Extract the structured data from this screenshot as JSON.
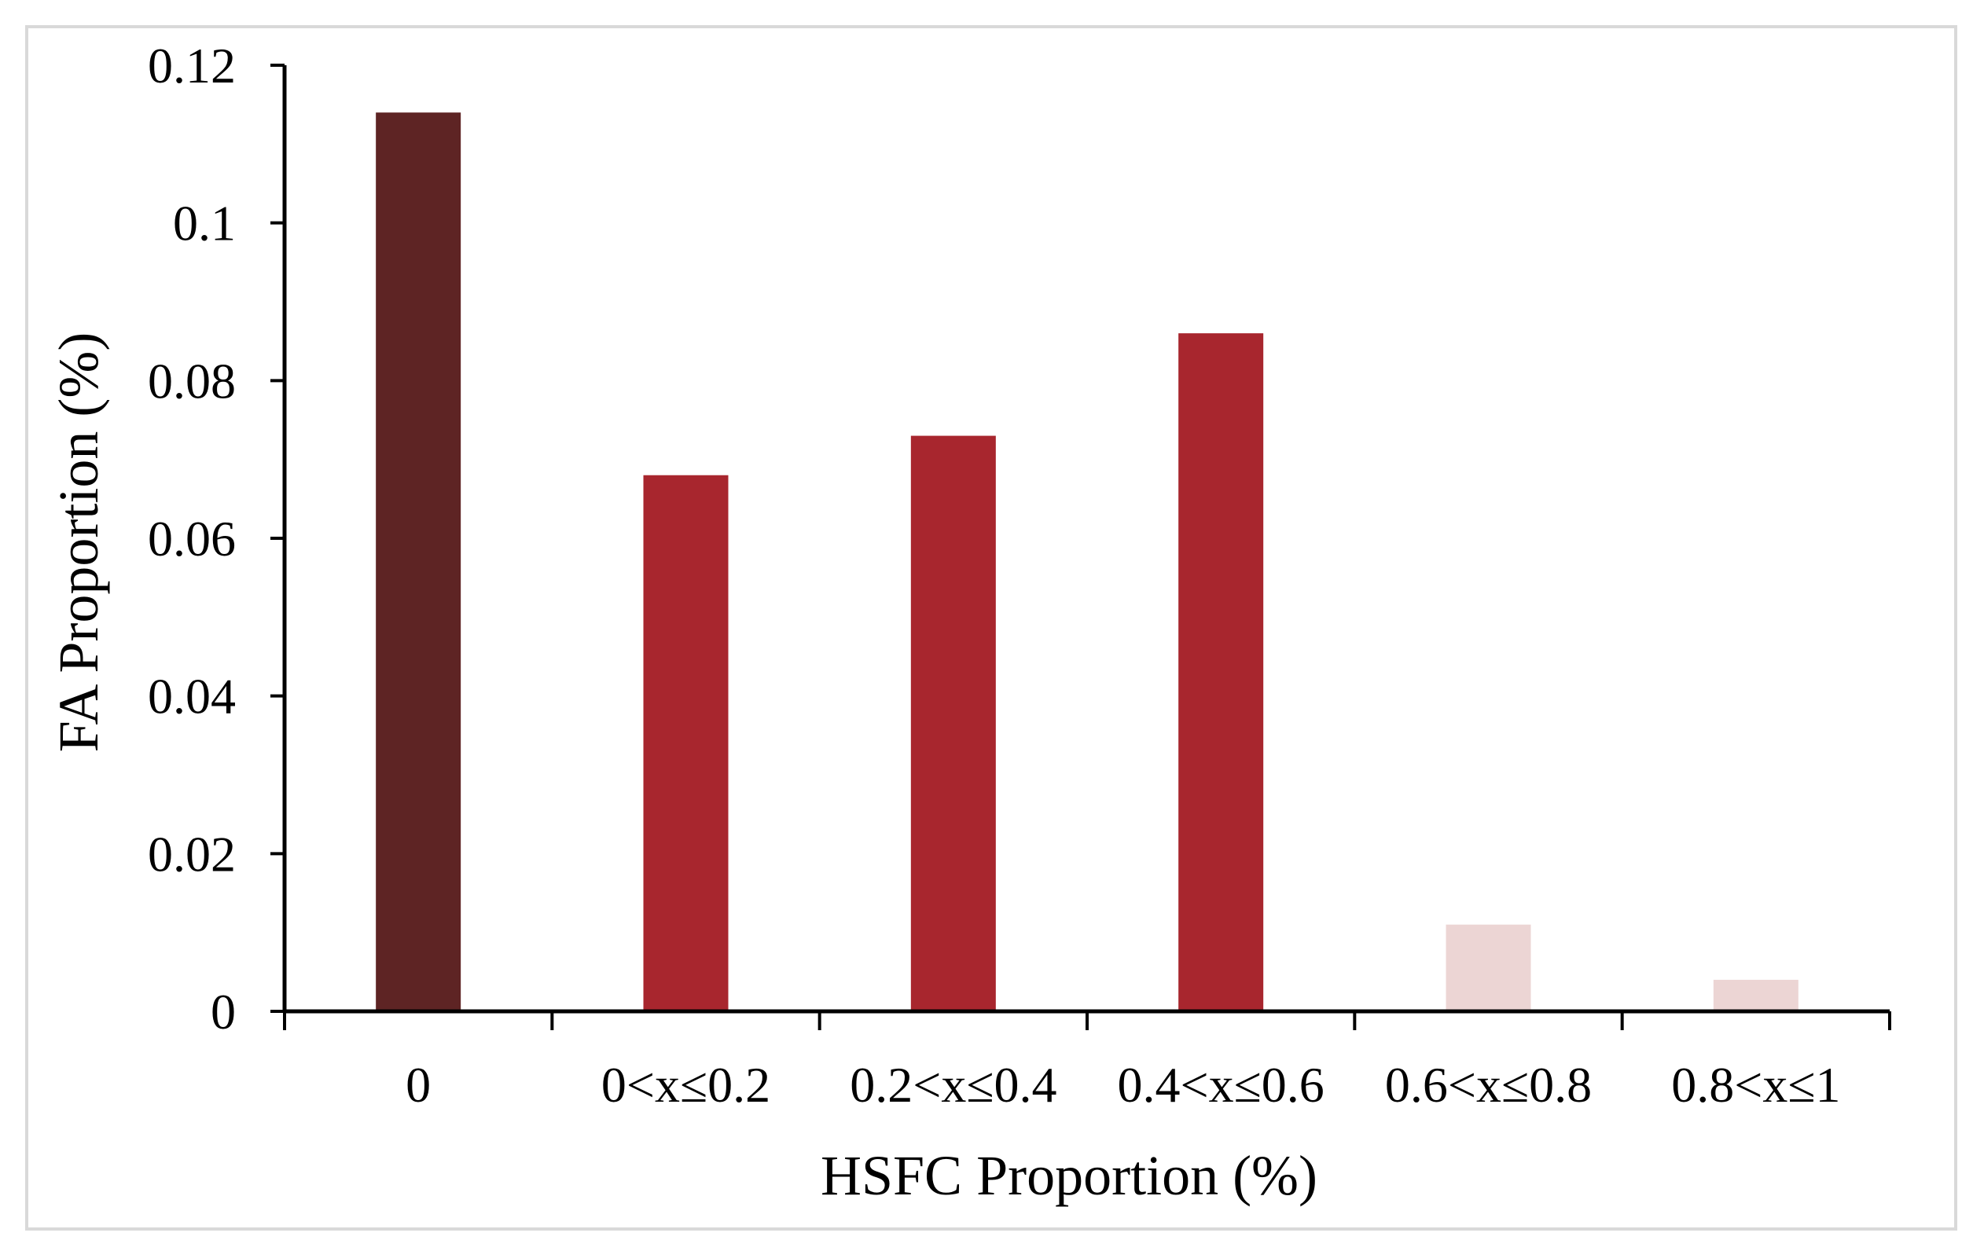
{
  "chart_data": {
    "type": "bar",
    "categories": [
      "0",
      "0<x≤0.2",
      "0.2<x≤0.4",
      "0.4<x≤0.6",
      "0.6<x≤0.8",
      "0.8<x≤1"
    ],
    "values": [
      0.114,
      0.068,
      0.073,
      0.086,
      0.011,
      0.004
    ],
    "bar_colors": [
      "#5e2424",
      "#a8262e",
      "#a8262e",
      "#a8262e",
      "#ecd5d4",
      "#ecd5d4"
    ],
    "xlabel": "HSFC Proportion (%)",
    "ylabel": "FA Proportion (%)",
    "ylim": [
      0,
      0.12
    ],
    "yticks": [
      0,
      0.02,
      0.04,
      0.06,
      0.08,
      0.1,
      0.12
    ],
    "ytick_labels": [
      "0",
      "0.02",
      "0.04",
      "0.06",
      "0.08",
      "0.1",
      "0.12"
    ],
    "grid": false,
    "legend": "none"
  }
}
